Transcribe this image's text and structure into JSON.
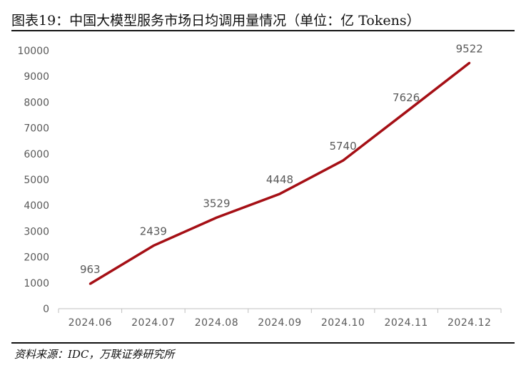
{
  "figure": {
    "title": "图表19：中国大模型服务市场日均调用量情况（单位：亿 Tokens）",
    "source": "资料来源：IDC，万联证券研究所"
  },
  "colors": {
    "line": "#a50f15",
    "axis": "#bfbfbf",
    "text": "#595959"
  },
  "chart_data": {
    "type": "line",
    "categories": [
      "2024.06",
      "2024.07",
      "2024.08",
      "2024.09",
      "2024.10",
      "2024.11",
      "2024.12"
    ],
    "values": [
      963,
      2439,
      3529,
      4448,
      5740,
      7626,
      9522
    ],
    "data_labels": [
      "963",
      "2439",
      "3529",
      "4448",
      "5740",
      "7626",
      "9522"
    ],
    "yticks": [
      0,
      1000,
      2000,
      3000,
      4000,
      5000,
      6000,
      7000,
      8000,
      9000,
      10000
    ],
    "ytick_labels": [
      "0",
      "1000",
      "2000",
      "3000",
      "4000",
      "5000",
      "6000",
      "7000",
      "8000",
      "9000",
      "10000"
    ],
    "ylim": [
      0,
      10000
    ],
    "xlabel": "",
    "ylabel": "",
    "grid": false,
    "legend": "none"
  }
}
